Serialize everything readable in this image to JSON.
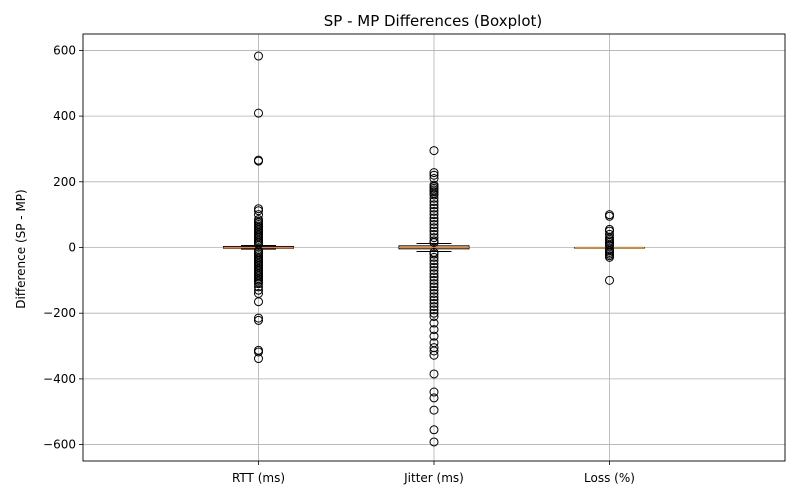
{
  "chart_data": {
    "type": "boxplot",
    "title": "SP - MP Differences (Boxplot)",
    "xlabel": "",
    "ylabel": "Difference (SP - MP)",
    "categories": [
      "RTT (ms)",
      "Jitter (ms)",
      "Loss (%)"
    ],
    "ylim": [
      -650,
      650
    ],
    "yticks": [
      -600,
      -400,
      -200,
      0,
      200,
      400,
      600
    ],
    "ytick_labels": [
      "−600",
      "−400",
      "−200",
      "0",
      "200",
      "400",
      "600"
    ],
    "grid": true,
    "boxes": [
      {
        "label": "RTT (ms)",
        "q1": -2,
        "median": 0,
        "q3": 3,
        "whisker_low": -5,
        "whisker_high": 6,
        "outliers": [
          583,
          409,
          266,
          263,
          118,
          112,
          100,
          85,
          80,
          75,
          70,
          65,
          60,
          55,
          50,
          45,
          40,
          35,
          30,
          25,
          20,
          15,
          10,
          -10,
          -15,
          -20,
          -25,
          -30,
          -35,
          -40,
          -45,
          -50,
          -55,
          -60,
          -65,
          -70,
          -75,
          -80,
          -85,
          -90,
          -95,
          -100,
          -105,
          -110,
          -120,
          -130,
          -140,
          -165,
          -215,
          -222,
          -313,
          -318,
          -338
        ]
      },
      {
        "label": "Jitter (ms)",
        "q1": -4,
        "median": 0,
        "q3": 5,
        "whisker_low": -12,
        "whisker_high": 12,
        "outliers": [
          295,
          228,
          220,
          210,
          190,
          185,
          180,
          175,
          170,
          165,
          160,
          150,
          140,
          130,
          120,
          110,
          100,
          90,
          80,
          70,
          60,
          50,
          40,
          30,
          20,
          15,
          -15,
          -20,
          -30,
          -40,
          -50,
          -60,
          -70,
          -80,
          -90,
          -100,
          -110,
          -120,
          -130,
          -140,
          -150,
          -160,
          -170,
          -180,
          -190,
          -200,
          -210,
          -230,
          -250,
          -270,
          -290,
          -305,
          -315,
          -328,
          -385,
          -440,
          -458,
          -495,
          -555,
          -592
        ]
      },
      {
        "label": "Loss (%)",
        "q1": 0,
        "median": 0,
        "q3": 0,
        "whisker_low": 0,
        "whisker_high": 0,
        "outliers": [
          100,
          95,
          55,
          50,
          40,
          30,
          25,
          20,
          15,
          10,
          5,
          -5,
          -10,
          -15,
          -20,
          -25,
          -30,
          -100
        ]
      }
    ],
    "colors": {
      "box": "#000000",
      "median": "#ff7f0e",
      "grid": "#b0b0b0",
      "outlier": "#000000"
    }
  }
}
